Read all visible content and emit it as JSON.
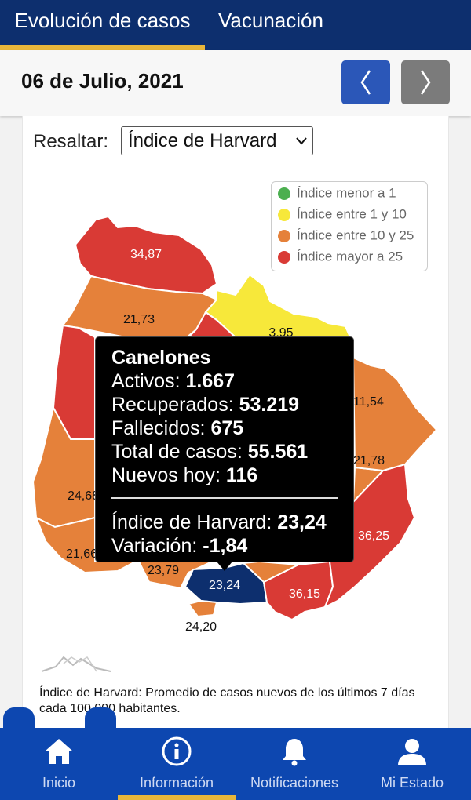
{
  "tabs": [
    {
      "label": "Evolución de casos",
      "active": true
    },
    {
      "label": "Vacunación",
      "active": false
    }
  ],
  "date": "06 de Julio, 2021",
  "nav": {
    "prev_icon": "chevron-left-icon",
    "next_icon": "chevron-right-icon"
  },
  "resaltar": {
    "label": "Resaltar:",
    "selected": "Índice de Harvard"
  },
  "legend": [
    {
      "label": "Índice menor a 1",
      "color": "#4caf50"
    },
    {
      "label": "Índice entre 1 y 10",
      "color": "#f7e83a"
    },
    {
      "label": "Índice entre 10 y 25",
      "color": "#e5813a"
    },
    {
      "label": "Índice mayor a 25",
      "color": "#d93a35"
    }
  ],
  "map_labels": {
    "artigas": "34,87",
    "salto": "21,73",
    "rivera": "3,95",
    "cerro_largo": "11,54",
    "treinta_tres": "21,78",
    "rocha": "36,25",
    "maldonado": "36,15",
    "canelones": "23,24",
    "montevideo": "24,20",
    "san_jose": "23,79",
    "colonia": "21,66",
    "soriano": "24,68"
  },
  "tooltip": {
    "department": "Canelones",
    "activos_label": "Activos:",
    "activos": "1.667",
    "recuperados_label": "Recuperados:",
    "recuperados": "53.219",
    "fallecidos_label": "Fallecidos:",
    "fallecidos": "675",
    "total_label": "Total de casos:",
    "total": "55.561",
    "nuevos_label": "Nuevos hoy:",
    "nuevos": "116",
    "harvard_label": "Índice de Harvard:",
    "harvard": "23,24",
    "variacion_label": "Variación:",
    "variacion": "-1,84"
  },
  "note": "Índice de Harvard: Promedio de casos nuevos de los últimos 7 días cada 100.000 habitantes.",
  "bottom_nav": [
    {
      "label": "Inicio",
      "icon": "home-icon"
    },
    {
      "label": "Información",
      "icon": "info-icon",
      "active": true
    },
    {
      "label": "Notificaciones",
      "icon": "bell-icon"
    },
    {
      "label": "Mi Estado",
      "icon": "user-icon"
    }
  ]
}
